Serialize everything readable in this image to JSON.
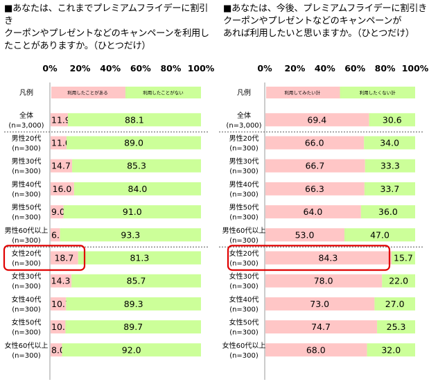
{
  "colors": {
    "pink": "#ffc6c6",
    "green": "#ccff99",
    "highlight": "#e00000",
    "divider": "#777777",
    "gridline": "#cccccc"
  },
  "questions": {
    "left": "■あなたは、これまでプレミアムフライデーに割引き\nクーポンやプレゼントなどのキャンペーンを利用し\nたことがありますか。（ひとつだけ）",
    "right": "■あなたは、今後、プレミアムフライデーに割引き\nクーポンやプレゼントなどのキャンペーンが\nあれば利用したいと思いますか。（ひとつだけ）"
  },
  "chart_data": [
    {
      "type": "bar",
      "orientation": "horizontal-stacked-100",
      "xlim": [
        0,
        100
      ],
      "x_ticks": [
        "0%",
        "20%",
        "40%",
        "60%",
        "80%",
        "100%"
      ],
      "legend_title": "凡例",
      "highlighted_category": "女性20代(n=300)",
      "categories": [
        [
          "全体",
          "(n=3,000)"
        ],
        [
          "男性20代",
          "(n=300)"
        ],
        [
          "男性30代",
          "(n=300)"
        ],
        [
          "男性40代",
          "(n=300)"
        ],
        [
          "男性50代",
          "(n=300)"
        ],
        [
          "男性60代以上",
          "(n=300)"
        ],
        [
          "女性20代",
          "(n=300)"
        ],
        [
          "女性30代",
          "(n=300)"
        ],
        [
          "女性40代",
          "(n=300)"
        ],
        [
          "女性50代",
          "(n=300)"
        ],
        [
          "女性60代以上",
          "(n=300)"
        ]
      ],
      "series": [
        {
          "name": "利用したことがある",
          "color": "#ffc6c6",
          "values": [
            11.9,
            11.0,
            14.7,
            16.0,
            9.0,
            6.7,
            18.7,
            14.3,
            10.7,
            10.3,
            8.0
          ]
        },
        {
          "name": "利用したことがない",
          "color": "#ccff99",
          "values": [
            88.1,
            89.0,
            85.3,
            84.0,
            91.0,
            93.3,
            81.3,
            85.7,
            89.3,
            89.7,
            92.0
          ]
        }
      ]
    },
    {
      "type": "bar",
      "orientation": "horizontal-stacked-100",
      "xlim": [
        0,
        100
      ],
      "x_ticks": [
        "0%",
        "20%",
        "40%",
        "60%",
        "80%",
        "100%"
      ],
      "legend_title": "凡例",
      "highlighted_category": "女性20代(n=300)",
      "categories": [
        [
          "全体",
          "(n=3,000)"
        ],
        [
          "男性20代",
          "(n=300)"
        ],
        [
          "男性30代",
          "(n=300)"
        ],
        [
          "男性40代",
          "(n=300)"
        ],
        [
          "男性50代",
          "(n=300)"
        ],
        [
          "男性60代以上",
          "(n=300)"
        ],
        [
          "女性20代",
          "(n=300)"
        ],
        [
          "女性30代",
          "(n=300)"
        ],
        [
          "女性40代",
          "(n=300)"
        ],
        [
          "女性50代",
          "(n=300)"
        ],
        [
          "女性60代以上",
          "(n=300)"
        ]
      ],
      "series": [
        {
          "name": "利用してみたい計",
          "color": "#ffc6c6",
          "values": [
            69.4,
            66.0,
            66.7,
            66.3,
            64.0,
            53.0,
            84.3,
            78.0,
            73.0,
            74.7,
            68.0
          ]
        },
        {
          "name": "利用したくない計",
          "color": "#ccff99",
          "values": [
            30.6,
            34.0,
            33.3,
            33.7,
            36.0,
            47.0,
            15.7,
            22.0,
            27.0,
            25.3,
            32.0
          ]
        }
      ]
    }
  ]
}
